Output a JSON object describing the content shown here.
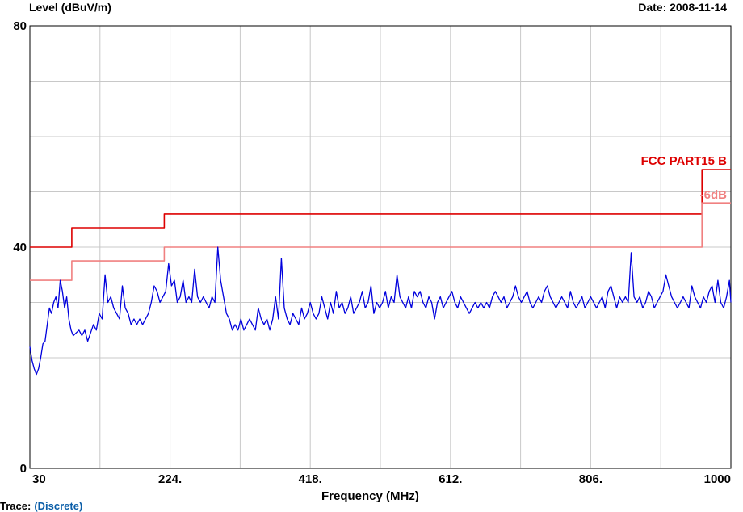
{
  "chart_data": {
    "type": "line",
    "ylabel": "Level (dBuV/m)",
    "xlabel": "Frequency (MHz)",
    "date": "Date: 2008-11-14",
    "xlim": [
      30,
      1000
    ],
    "ylim": [
      0,
      80
    ],
    "x_ticks": [
      {
        "value": 30,
        "label": "30"
      },
      {
        "value": 224,
        "label": "224."
      },
      {
        "value": 418,
        "label": "418."
      },
      {
        "value": 612,
        "label": "612."
      },
      {
        "value": 806,
        "label": "806."
      },
      {
        "value": 1000,
        "label": "1000"
      }
    ],
    "y_ticks": [
      {
        "value": 0,
        "label": "0"
      },
      {
        "value": 40,
        "label": "40"
      },
      {
        "value": 80,
        "label": "80"
      }
    ],
    "grid": true,
    "colors": {
      "trace": "#0000dd",
      "limit": "#dd0000",
      "margin": "#f08080",
      "grid": "#c8c8c8"
    },
    "series": [
      {
        "name": "FCC PART15 B",
        "style": "step",
        "color": "#dd0000",
        "points": [
          [
            30,
            40
          ],
          [
            88,
            40
          ],
          [
            88,
            43.5
          ],
          [
            216,
            43.5
          ],
          [
            216,
            46
          ],
          [
            960,
            46
          ],
          [
            960,
            54
          ],
          [
            1000,
            54
          ]
        ]
      },
      {
        "name": "-6dB",
        "style": "step",
        "color": "#f08080",
        "points": [
          [
            30,
            34
          ],
          [
            88,
            34
          ],
          [
            88,
            37.5
          ],
          [
            216,
            37.5
          ],
          [
            216,
            40
          ],
          [
            960,
            40
          ],
          [
            960,
            48
          ],
          [
            1000,
            48
          ]
        ]
      },
      {
        "style": "trace",
        "color": "#0000dd",
        "points": [
          [
            30,
            22
          ],
          [
            33,
            19.5
          ],
          [
            36,
            18
          ],
          [
            39,
            17
          ],
          [
            42,
            18
          ],
          [
            45,
            20
          ],
          [
            48,
            22.5
          ],
          [
            51,
            23
          ],
          [
            54,
            26
          ],
          [
            57,
            29
          ],
          [
            60,
            28
          ],
          [
            63,
            30
          ],
          [
            66,
            31
          ],
          [
            69,
            29
          ],
          [
            72,
            34
          ],
          [
            75,
            32
          ],
          [
            78,
            29
          ],
          [
            81,
            31
          ],
          [
            84,
            27
          ],
          [
            87,
            25
          ],
          [
            90,
            24
          ],
          [
            94,
            24.5
          ],
          [
            98,
            25
          ],
          [
            102,
            24
          ],
          [
            106,
            25
          ],
          [
            110,
            23
          ],
          [
            114,
            24.5
          ],
          [
            118,
            26
          ],
          [
            122,
            25
          ],
          [
            126,
            28
          ],
          [
            130,
            27
          ],
          [
            134,
            35
          ],
          [
            138,
            30
          ],
          [
            142,
            31
          ],
          [
            146,
            29
          ],
          [
            150,
            28
          ],
          [
            154,
            27
          ],
          [
            158,
            33
          ],
          [
            162,
            29
          ],
          [
            166,
            28
          ],
          [
            170,
            26
          ],
          [
            174,
            27
          ],
          [
            178,
            26
          ],
          [
            182,
            27
          ],
          [
            186,
            26
          ],
          [
            190,
            27
          ],
          [
            194,
            28
          ],
          [
            198,
            30
          ],
          [
            202,
            33
          ],
          [
            206,
            32
          ],
          [
            210,
            30
          ],
          [
            214,
            31
          ],
          [
            218,
            32
          ],
          [
            222,
            37
          ],
          [
            226,
            33
          ],
          [
            230,
            34
          ],
          [
            234,
            30
          ],
          [
            238,
            31
          ],
          [
            242,
            34
          ],
          [
            246,
            30
          ],
          [
            250,
            31
          ],
          [
            254,
            30
          ],
          [
            258,
            36
          ],
          [
            262,
            31
          ],
          [
            266,
            30
          ],
          [
            270,
            31
          ],
          [
            274,
            30
          ],
          [
            278,
            29
          ],
          [
            282,
            31
          ],
          [
            286,
            30
          ],
          [
            290,
            40
          ],
          [
            294,
            34
          ],
          [
            298,
            31
          ],
          [
            302,
            28
          ],
          [
            306,
            27
          ],
          [
            310,
            25
          ],
          [
            314,
            26
          ],
          [
            318,
            25
          ],
          [
            322,
            27
          ],
          [
            326,
            25
          ],
          [
            330,
            26
          ],
          [
            334,
            27
          ],
          [
            338,
            26
          ],
          [
            342,
            25
          ],
          [
            346,
            29
          ],
          [
            350,
            27
          ],
          [
            354,
            26
          ],
          [
            358,
            27
          ],
          [
            362,
            25
          ],
          [
            366,
            27
          ],
          [
            370,
            31
          ],
          [
            374,
            27
          ],
          [
            378,
            38
          ],
          [
            382,
            29
          ],
          [
            386,
            27
          ],
          [
            390,
            26
          ],
          [
            394,
            28
          ],
          [
            398,
            27
          ],
          [
            402,
            26
          ],
          [
            406,
            29
          ],
          [
            410,
            27
          ],
          [
            414,
            28
          ],
          [
            418,
            30
          ],
          [
            422,
            28
          ],
          [
            426,
            27
          ],
          [
            430,
            28
          ],
          [
            434,
            31
          ],
          [
            438,
            29
          ],
          [
            442,
            27
          ],
          [
            446,
            30
          ],
          [
            450,
            28
          ],
          [
            454,
            32
          ],
          [
            458,
            29
          ],
          [
            462,
            30
          ],
          [
            466,
            28
          ],
          [
            470,
            29
          ],
          [
            474,
            31
          ],
          [
            478,
            28
          ],
          [
            482,
            29
          ],
          [
            486,
            30
          ],
          [
            490,
            32
          ],
          [
            494,
            29
          ],
          [
            498,
            30
          ],
          [
            502,
            33
          ],
          [
            506,
            28
          ],
          [
            510,
            30
          ],
          [
            514,
            29
          ],
          [
            518,
            30
          ],
          [
            522,
            32
          ],
          [
            526,
            29
          ],
          [
            530,
            31
          ],
          [
            534,
            30
          ],
          [
            538,
            35
          ],
          [
            542,
            31
          ],
          [
            546,
            30
          ],
          [
            550,
            29
          ],
          [
            554,
            31
          ],
          [
            558,
            29
          ],
          [
            562,
            32
          ],
          [
            566,
            31
          ],
          [
            570,
            32
          ],
          [
            574,
            30
          ],
          [
            578,
            29
          ],
          [
            582,
            31
          ],
          [
            586,
            30
          ],
          [
            590,
            27
          ],
          [
            594,
            30
          ],
          [
            598,
            31
          ],
          [
            602,
            29
          ],
          [
            606,
            30
          ],
          [
            610,
            31
          ],
          [
            614,
            32
          ],
          [
            618,
            30
          ],
          [
            622,
            29
          ],
          [
            626,
            31
          ],
          [
            630,
            30
          ],
          [
            634,
            29
          ],
          [
            638,
            28
          ],
          [
            642,
            29
          ],
          [
            646,
            30
          ],
          [
            650,
            29
          ],
          [
            654,
            30
          ],
          [
            658,
            29
          ],
          [
            662,
            30
          ],
          [
            666,
            29
          ],
          [
            670,
            31
          ],
          [
            674,
            32
          ],
          [
            678,
            31
          ],
          [
            682,
            30
          ],
          [
            686,
            31
          ],
          [
            690,
            29
          ],
          [
            694,
            30
          ],
          [
            698,
            31
          ],
          [
            702,
            33
          ],
          [
            706,
            31
          ],
          [
            710,
            30
          ],
          [
            714,
            31
          ],
          [
            718,
            32
          ],
          [
            722,
            30
          ],
          [
            726,
            29
          ],
          [
            730,
            30
          ],
          [
            734,
            31
          ],
          [
            738,
            30
          ],
          [
            742,
            32
          ],
          [
            746,
            33
          ],
          [
            750,
            31
          ],
          [
            754,
            30
          ],
          [
            758,
            29
          ],
          [
            762,
            30
          ],
          [
            766,
            31
          ],
          [
            770,
            30
          ],
          [
            774,
            29
          ],
          [
            778,
            32
          ],
          [
            782,
            30
          ],
          [
            786,
            29
          ],
          [
            790,
            30
          ],
          [
            794,
            31
          ],
          [
            798,
            29
          ],
          [
            802,
            30
          ],
          [
            806,
            31
          ],
          [
            810,
            30
          ],
          [
            814,
            29
          ],
          [
            818,
            30
          ],
          [
            822,
            31
          ],
          [
            826,
            29
          ],
          [
            830,
            32
          ],
          [
            834,
            33
          ],
          [
            838,
            31
          ],
          [
            842,
            29
          ],
          [
            846,
            31
          ],
          [
            850,
            30
          ],
          [
            854,
            31
          ],
          [
            858,
            30
          ],
          [
            862,
            39
          ],
          [
            866,
            31
          ],
          [
            870,
            30
          ],
          [
            874,
            31
          ],
          [
            878,
            29
          ],
          [
            882,
            30
          ],
          [
            886,
            32
          ],
          [
            890,
            31
          ],
          [
            894,
            29
          ],
          [
            898,
            30
          ],
          [
            902,
            31
          ],
          [
            906,
            32
          ],
          [
            910,
            35
          ],
          [
            914,
            33
          ],
          [
            918,
            31
          ],
          [
            922,
            30
          ],
          [
            926,
            29
          ],
          [
            930,
            30
          ],
          [
            934,
            31
          ],
          [
            938,
            30
          ],
          [
            942,
            29
          ],
          [
            946,
            33
          ],
          [
            950,
            31
          ],
          [
            954,
            30
          ],
          [
            958,
            29
          ],
          [
            962,
            31
          ],
          [
            966,
            30
          ],
          [
            970,
            32
          ],
          [
            974,
            33
          ],
          [
            978,
            30
          ],
          [
            982,
            34
          ],
          [
            986,
            30
          ],
          [
            990,
            29
          ],
          [
            994,
            31
          ],
          [
            998,
            34
          ],
          [
            1000,
            30
          ]
        ]
      }
    ],
    "limit_labels": {
      "limit": "FCC PART15 B",
      "margin": "-6dB"
    }
  },
  "footer": {
    "trace_key": "Trace:",
    "trace_value": "(Discrete)"
  }
}
